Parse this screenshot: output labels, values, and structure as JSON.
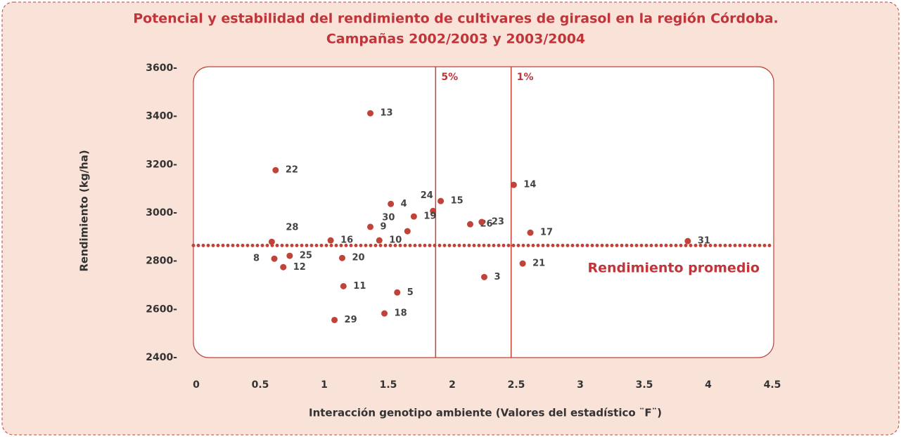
{
  "chart_data": {
    "type": "scatter",
    "title": "Potencial y estabilidad del rendimiento de cultivares de girasol en la región Córdoba.",
    "subtitle": "Campañas 2002/2003 y 2003/2004",
    "x_label": "Interacción genotipo ambiente (Valores del estadístico ¨F¨)",
    "y_label": "Rendimiento (kg/ha)",
    "color": "#c0433a",
    "labels": [
      "13",
      "22",
      "14",
      "15",
      "4",
      "24",
      "19",
      "9",
      "30",
      "10",
      "16",
      "28",
      "8",
      "25",
      "12",
      "20",
      "11",
      "5",
      "18",
      "29",
      "26",
      "23",
      "17",
      "21",
      "3",
      "31"
    ],
    "x": [
      1.36,
      0.62,
      2.48,
      1.91,
      1.52,
      1.85,
      1.7,
      1.36,
      1.65,
      1.43,
      1.05,
      0.59,
      0.61,
      0.73,
      0.68,
      1.14,
      1.15,
      1.57,
      1.47,
      1.08,
      2.14,
      2.23,
      2.61,
      2.55,
      2.25,
      3.84
    ],
    "values": [
      3413,
      3177,
      3116,
      3049,
      3037,
      3008,
      2985,
      2942,
      2924,
      2886,
      2886,
      2880,
      2810,
      2822,
      2775,
      2813,
      2696,
      2670,
      2583,
      2556,
      2953,
      2962,
      2918,
      2790,
      2734,
      2883
    ],
    "xlim": [
      0,
      4.5
    ],
    "xticks": [
      0,
      0.5,
      1,
      1.5,
      2,
      2.5,
      3,
      3.5,
      4,
      4.5
    ],
    "ylim": [
      2400,
      3600
    ],
    "yticks": [
      {
        "value": 2400,
        "label": "2400-"
      },
      {
        "value": 2600,
        "label": "2600-"
      },
      {
        "value": 2800,
        "label": "2800-"
      },
      {
        "value": 3000,
        "label": "3000-"
      },
      {
        "value": 3200,
        "label": "3200-"
      },
      {
        "value": 3400,
        "label": "3400-"
      },
      {
        "value": 3600,
        "label": "3600-"
      }
    ],
    "vlines": [
      {
        "value": 1.87,
        "label": "5%"
      },
      {
        "value": 2.46,
        "label": "1%"
      }
    ],
    "hline": {
      "value": 2865,
      "label": "Rendimiento promedio"
    }
  }
}
